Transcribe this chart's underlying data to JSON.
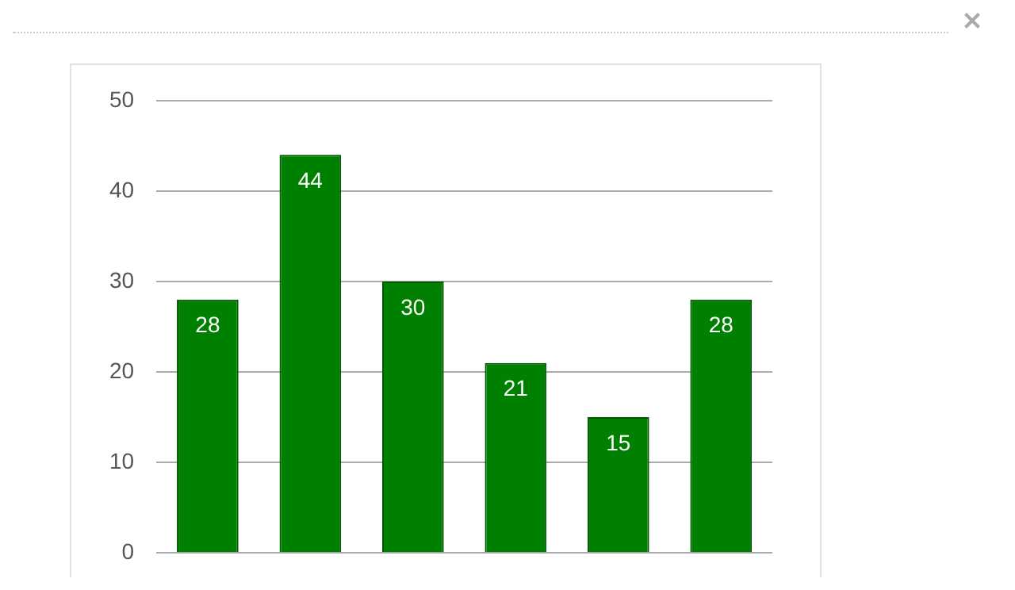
{
  "chart_data": {
    "type": "bar",
    "categories": [
      null,
      null,
      null,
      null,
      null,
      null
    ],
    "values": [
      28,
      44,
      30,
      21,
      15,
      28
    ],
    "color": "#008000",
    "ylim": [
      0,
      50
    ],
    "yticks": [
      0,
      10,
      20,
      30,
      40,
      50
    ],
    "grid": "y",
    "data_labels": true,
    "legend": false
  }
}
